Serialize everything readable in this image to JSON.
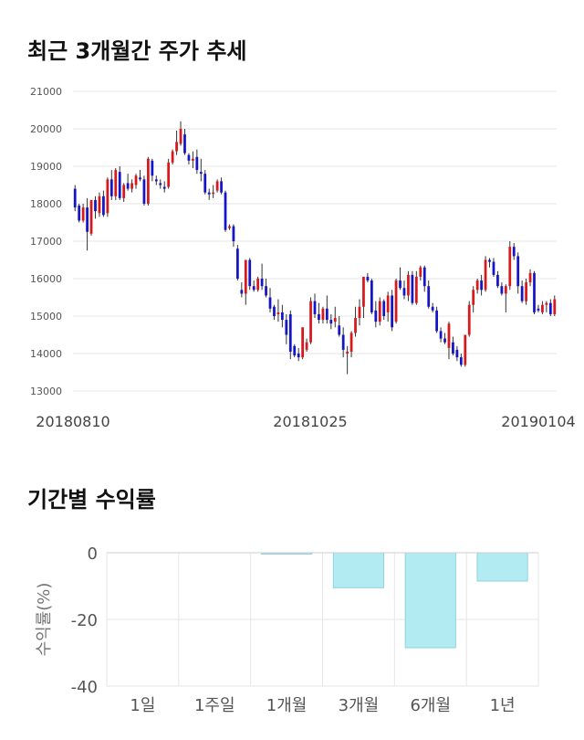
{
  "titles": {
    "price_trend": "최근 3개월간 주가 추세",
    "period_returns": "기간별 수익률"
  },
  "colors": {
    "up": "#d7191c",
    "down": "#1515c8",
    "bar_fill": "#b3ebf3",
    "bar_stroke": "#8fd3de",
    "grid": "#e6e6e6"
  },
  "chart_data": [
    {
      "type": "candlestick",
      "title": "최근 3개월간 주가 추세",
      "ylim": [
        13000,
        21000
      ],
      "y_ticks": [
        "13000",
        "14000",
        "15000",
        "16000",
        "17000",
        "18000",
        "19000",
        "20000",
        "21000"
      ],
      "x_labels": [
        "20180810",
        "20181025",
        "20190104"
      ],
      "grid": true,
      "candles": [
        [
          18400,
          17900,
          18500,
          17800
        ],
        [
          17950,
          17550,
          18000,
          17500
        ],
        [
          17550,
          17900,
          18000,
          17500
        ],
        [
          17900,
          17250,
          18150,
          16750
        ],
        [
          17200,
          18100,
          18100,
          17150
        ],
        [
          18100,
          17800,
          18200,
          17600
        ],
        [
          17750,
          18200,
          18300,
          17650
        ],
        [
          18200,
          17700,
          18350,
          17650
        ],
        [
          17750,
          18650,
          18700,
          17650
        ],
        [
          18650,
          18200,
          18900,
          18100
        ],
        [
          18200,
          18900,
          18950,
          18100
        ],
        [
          18850,
          18150,
          19000,
          18100
        ],
        [
          18150,
          18500,
          18550,
          18050
        ],
        [
          18550,
          18400,
          18800,
          18350
        ],
        [
          18400,
          18550,
          18650,
          18300
        ],
        [
          18500,
          18750,
          18800,
          18400
        ],
        [
          18700,
          18650,
          18900,
          18600
        ],
        [
          18650,
          18000,
          18750,
          17950
        ],
        [
          18000,
          19200,
          19250,
          17950
        ],
        [
          19150,
          18750,
          19200,
          18600
        ],
        [
          18650,
          18600,
          18750,
          18500
        ],
        [
          18550,
          18500,
          18650,
          18400
        ],
        [
          18450,
          18400,
          18600,
          18300
        ],
        [
          18450,
          19100,
          19200,
          18400
        ],
        [
          19100,
          19400,
          19450,
          19050
        ],
        [
          19400,
          19650,
          19950,
          19300
        ],
        [
          19600,
          20000,
          20200,
          19550
        ],
        [
          19850,
          19350,
          20000,
          19300
        ],
        [
          19300,
          19150,
          19350,
          19050
        ],
        [
          19150,
          19200,
          19400,
          18950
        ],
        [
          19250,
          18900,
          19450,
          18800
        ],
        [
          18850,
          18800,
          19200,
          18600
        ],
        [
          18800,
          18300,
          18900,
          18250
        ],
        [
          18300,
          18250,
          18400,
          18100
        ],
        [
          18300,
          18300,
          18500,
          18150
        ],
        [
          18350,
          18600,
          18650,
          18300
        ],
        [
          18600,
          18300,
          18700,
          18250
        ],
        [
          18300,
          17300,
          18350,
          17250
        ],
        [
          17350,
          17400,
          17450,
          17300
        ],
        [
          17400,
          17000,
          17450,
          16850
        ],
        [
          16800,
          16000,
          16900,
          15950
        ],
        [
          15700,
          15600,
          15900,
          15500
        ],
        [
          15600,
          16500,
          16500,
          15300
        ],
        [
          16500,
          15800,
          16550,
          15700
        ],
        [
          15800,
          15700,
          15950,
          15650
        ],
        [
          15700,
          16000,
          16050,
          15650
        ],
        [
          16000,
          15800,
          16400,
          15700
        ],
        [
          15800,
          15550,
          16000,
          15500
        ],
        [
          15500,
          15200,
          15750,
          15100
        ],
        [
          15250,
          15000,
          15300,
          14900
        ],
        [
          15050,
          15100,
          15450,
          14850
        ],
        [
          15100,
          14900,
          15300,
          14700
        ],
        [
          14900,
          14500,
          15050,
          14250
        ],
        [
          15050,
          14050,
          15150,
          13850
        ],
        [
          14200,
          13950,
          14250,
          13900
        ],
        [
          14000,
          13900,
          14150,
          13800
        ],
        [
          13900,
          14700,
          14700,
          13850
        ],
        [
          14100,
          14300,
          14400,
          14050
        ],
        [
          14300,
          15400,
          15500,
          14250
        ],
        [
          15400,
          15050,
          15600,
          14950
        ],
        [
          15050,
          14900,
          15350,
          14800
        ],
        [
          14900,
          15200,
          15250,
          14800
        ],
        [
          15200,
          14900,
          15550,
          14800
        ],
        [
          14900,
          14800,
          15050,
          14650
        ],
        [
          14850,
          14950,
          15250,
          14700
        ],
        [
          14750,
          14500,
          15000,
          14450
        ],
        [
          14500,
          14100,
          14700,
          13900
        ],
        [
          14000,
          14050,
          14200,
          13450
        ],
        [
          14050,
          14550,
          14600,
          13900
        ],
        [
          14550,
          14950,
          15250,
          14450
        ],
        [
          14950,
          15250,
          15450,
          14750
        ],
        [
          15250,
          16050,
          16050,
          14950
        ],
        [
          16050,
          15950,
          16150,
          15900
        ],
        [
          15950,
          15100,
          16000,
          15050
        ],
        [
          15150,
          14850,
          15400,
          14700
        ],
        [
          14850,
          15400,
          15500,
          14750
        ],
        [
          15400,
          15000,
          15450,
          14900
        ],
        [
          15100,
          15550,
          15650,
          14850
        ],
        [
          15550,
          14700,
          15700,
          14600
        ],
        [
          14850,
          15950,
          16000,
          14800
        ],
        [
          15950,
          15750,
          16300,
          15700
        ],
        [
          15750,
          15550,
          15950,
          15450
        ],
        [
          15550,
          16100,
          16200,
          15400
        ],
        [
          16100,
          15350,
          16200,
          15300
        ],
        [
          15350,
          16050,
          16200,
          15300
        ],
        [
          16050,
          16300,
          16350,
          15950
        ],
        [
          16300,
          15800,
          16350,
          15650
        ],
        [
          15800,
          15250,
          15950,
          15200
        ],
        [
          15250,
          15150,
          15350,
          15100
        ],
        [
          15150,
          14600,
          15250,
          14550
        ],
        [
          14600,
          14400,
          14700,
          14300
        ],
        [
          14400,
          14300,
          14550,
          14250
        ],
        [
          14150,
          14800,
          14850,
          13850
        ],
        [
          14300,
          14000,
          14450,
          13950
        ],
        [
          14100,
          13900,
          14200,
          13800
        ],
        [
          13900,
          13700,
          14000,
          13650
        ],
        [
          13700,
          14500,
          14500,
          13650
        ],
        [
          14500,
          15300,
          15400,
          14450
        ],
        [
          15300,
          15700,
          15800,
          15100
        ],
        [
          15700,
          15950,
          16000,
          15600
        ],
        [
          15950,
          15700,
          16100,
          15550
        ],
        [
          15700,
          16500,
          16600,
          15650
        ],
        [
          16500,
          16450,
          16550,
          16300
        ],
        [
          16450,
          16100,
          16550,
          16050
        ],
        [
          16100,
          15800,
          16200,
          15750
        ],
        [
          15800,
          15600,
          15900,
          15550
        ],
        [
          15600,
          15800,
          15850,
          15100
        ],
        [
          15800,
          16850,
          17000,
          15700
        ],
        [
          16850,
          16600,
          16950,
          16500
        ],
        [
          16600,
          15800,
          16700,
          15600
        ],
        [
          15800,
          15400,
          15950,
          15350
        ],
        [
          15400,
          15900,
          16000,
          15300
        ],
        [
          15900,
          16150,
          16250,
          15800
        ],
        [
          16150,
          15100,
          16200,
          15050
        ],
        [
          15200,
          15150,
          15300,
          15100
        ],
        [
          15100,
          15300,
          15400,
          15050
        ],
        [
          15300,
          15350,
          15400,
          15100
        ],
        [
          15350,
          15050,
          15450,
          15000
        ],
        [
          15050,
          15450,
          15550,
          15000
        ]
      ]
    },
    {
      "type": "bar",
      "title": "기간별 수익률",
      "ylabel": "수익률(%)",
      "ylim": [
        -40,
        0
      ],
      "y_ticks": [
        "0",
        "-20",
        "-40"
      ],
      "categories": [
        "1일",
        "1주일",
        "1개월",
        "3개월",
        "6개월",
        "1년"
      ],
      "values": [
        0,
        0,
        -0.4,
        -10.5,
        -28.5,
        -8.5
      ],
      "grid": true
    }
  ]
}
